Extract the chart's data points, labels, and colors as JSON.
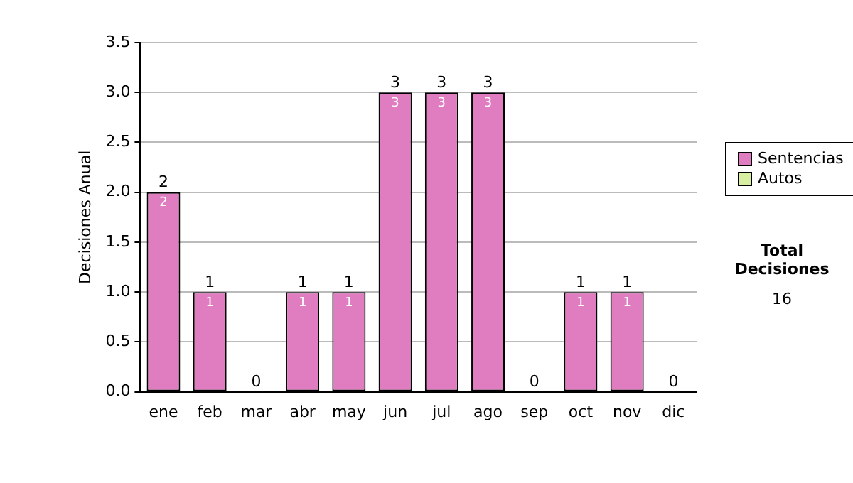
{
  "chart_data": {
    "type": "bar",
    "ylabel": "Decisiones Anual",
    "categories": [
      "ene",
      "feb",
      "mar",
      "abr",
      "may",
      "jun",
      "jul",
      "ago",
      "sep",
      "oct",
      "nov",
      "dic"
    ],
    "stacked": true,
    "series": [
      {
        "name": "Sentencias",
        "color": "#e07cc0",
        "values": [
          2,
          1,
          0,
          1,
          1,
          3,
          3,
          3,
          0,
          1,
          1,
          0
        ],
        "value_labels": [
          "2",
          "1",
          null,
          "1",
          "1",
          "3",
          "3",
          "3",
          null,
          "1",
          "1",
          null
        ]
      },
      {
        "name": "Autos",
        "color": "#d8eea0",
        "values": [
          0,
          0,
          0,
          0,
          0,
          0,
          0,
          0,
          0,
          0,
          0,
          0
        ]
      }
    ],
    "totals": [
      "2",
      "1",
      "0",
      "1",
      "1",
      "3",
      "3",
      "3",
      "0",
      "1",
      "1",
      "0"
    ],
    "ylim": [
      0,
      3.5
    ],
    "yticks": [
      {
        "value": 0,
        "label": "0.0"
      },
      {
        "value": 0.5,
        "label": "0.5"
      },
      {
        "value": 1,
        "label": "1.0"
      },
      {
        "value": 1.5,
        "label": "1.5"
      },
      {
        "value": 2,
        "label": "2.0"
      },
      {
        "value": 2.5,
        "label": "2.5"
      },
      {
        "value": 3,
        "label": "3.0"
      },
      {
        "value": 3.5,
        "label": "3.5"
      }
    ],
    "grid": "y",
    "legend": "right",
    "annotations": [
      "Total Decisiones",
      "16"
    ]
  }
}
